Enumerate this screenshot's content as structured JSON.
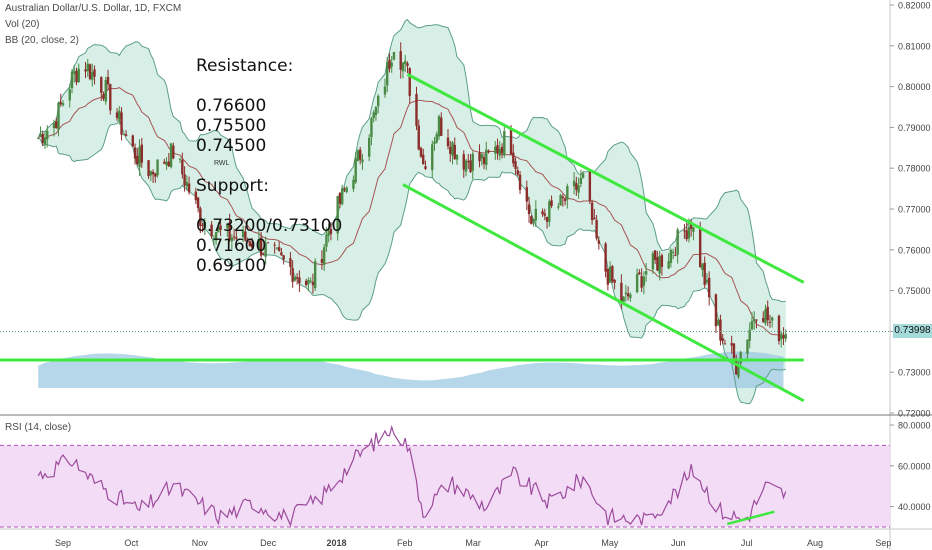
{
  "header": {
    "title": "Australian Dollar/U.S. Dollar, 1D, FXCM",
    "vol": "Vol (20)",
    "bb": "BB (20, close, 2)"
  },
  "rsi_label": "RSI (14, close)",
  "notes": {
    "resistance": "Resistance:\n\n0.76600\n0.75500\n0.74500",
    "tag": "RWL",
    "support": "Support:\n\n0.73200/0.73100\n0.71600\n0.69100"
  },
  "last_price": "0.73998",
  "colors": {
    "up": "#4a8a45",
    "down": "#8b2d2a",
    "band_fill": "#d7efe6",
    "band_line": "#5d9f88",
    "ma": "#a75454",
    "channel": "#3fe83f",
    "vol_area": "#9ecae3",
    "rsi_line": "#9c4b9c",
    "rsi_fill": "#f3dcf5",
    "rsi_band": "#b04eb8"
  },
  "chart_data": [
    {
      "type": "candlestick",
      "title": "Australian Dollar/U.S. Dollar, 1D, FXCM",
      "price_axis": {
        "ylim": [
          0.72,
          0.82
        ],
        "ticks": [
          "0.72000",
          "0.73000",
          "0.74000",
          "0.75000",
          "0.76000",
          "0.77000",
          "0.78000",
          "0.79000",
          "0.80000",
          "0.81000",
          "0.82000"
        ]
      },
      "x_ticks": [
        "Sep",
        "Oct",
        "Nov",
        "Dec",
        "2018",
        "Feb",
        "Mar",
        "Apr",
        "May",
        "Jun",
        "Jul",
        "Aug",
        "Sep"
      ],
      "close_path": [
        [
          "Aug 20 2017",
          0.787
        ],
        [
          "Aug 28 2017",
          0.791
        ],
        [
          "Sep 5 2017",
          0.802
        ],
        [
          "Sep 10 2017",
          0.806
        ],
        [
          "Sep 20 2017",
          0.799
        ],
        [
          "Oct 1 2017",
          0.785
        ],
        [
          "Oct 10 2017",
          0.779
        ],
        [
          "Oct 20 2017",
          0.784
        ],
        [
          "Nov 1 2017",
          0.768
        ],
        [
          "Nov 10 2017",
          0.764
        ],
        [
          "Nov 25 2017",
          0.762
        ],
        [
          "Dec 10 2017",
          0.756
        ],
        [
          "Dec 20 2017",
          0.751
        ],
        [
          "Dec 28 2017",
          0.765
        ],
        [
          "Jan 10 2018",
          0.782
        ],
        [
          "Jan 20 2018",
          0.797
        ],
        [
          "Jan 26 2018",
          0.811
        ],
        [
          "Feb 1 2018",
          0.803
        ],
        [
          "Feb 8 2018",
          0.781
        ],
        [
          "Feb 15 2018",
          0.791
        ],
        [
          "Feb 25 2018",
          0.782
        ],
        [
          "Mar 8 2018",
          0.782
        ],
        [
          "Mar 18 2018",
          0.788
        ],
        [
          "Mar 28 2018",
          0.767
        ],
        [
          "Apr 10 2018",
          0.771
        ],
        [
          "Apr 20 2018",
          0.777
        ],
        [
          "Apr 28 2018",
          0.757
        ],
        [
          "May 8 2018",
          0.747
        ],
        [
          "May 18 2018",
          0.755
        ],
        [
          "May 28 2018",
          0.759
        ],
        [
          "Jun 7 2018",
          0.767
        ],
        [
          "Jun 17 2018",
          0.743
        ],
        [
          "Jun 27 2018",
          0.732
        ],
        [
          "Jul 7 2018",
          0.747
        ],
        [
          "Jul 14 2018",
          0.74
        ],
        [
          "Jul 19 2018",
          0.74
        ]
      ],
      "bollinger": {
        "period": 20,
        "stdev": 2
      },
      "volume": {
        "label": "Vol (20)"
      },
      "trendlines": {
        "channel_upper": [
          [
            "Feb 1 2018",
            0.803
          ],
          [
            "Jul 27 2018",
            0.752
          ]
        ],
        "channel_lower": [
          [
            "Jan 30 2018",
            0.776
          ],
          [
            "Jul 27 2018",
            0.723
          ]
        ],
        "support": [
          [
            "Aug 1 2017",
            0.733
          ],
          [
            "Jul 27 2018",
            0.733
          ]
        ],
        "last_price_line": 0.73998
      },
      "annotations": [
        "Resistance:",
        "0.76600",
        "0.75500",
        "0.74500",
        "RWL",
        "Support:",
        "0.73200/0.73100",
        "0.71600",
        "0.69100"
      ]
    },
    {
      "type": "line",
      "title": "RSI (14, close)",
      "ylim": [
        30,
        80
      ],
      "ticks": [
        "40.0000",
        "60.0000",
        "80.0000"
      ],
      "bands": [
        30,
        70
      ],
      "points": [
        [
          "Aug 20 2017",
          55
        ],
        [
          "Sep 5 2017",
          63
        ],
        [
          "Sep 15 2017",
          52
        ],
        [
          "Oct 5 2017",
          38
        ],
        [
          "Oct 20 2017",
          50
        ],
        [
          "Nov 10 2017",
          35
        ],
        [
          "Nov 25 2017",
          42
        ],
        [
          "Dec 10 2017",
          34
        ],
        [
          "Dec 25 2017",
          45
        ],
        [
          "Jan 10 2018",
          65
        ],
        [
          "Jan 20 2018",
          74
        ],
        [
          "Jan 26 2018",
          79
        ],
        [
          "Feb 1 2018",
          70
        ],
        [
          "Feb 8 2018",
          38
        ],
        [
          "Feb 20 2018",
          52
        ],
        [
          "Mar 8 2018",
          40
        ],
        [
          "Mar 20 2018",
          56
        ],
        [
          "Apr 5 2018",
          42
        ],
        [
          "Apr 20 2018",
          54
        ],
        [
          "May 1 2018",
          35
        ],
        [
          "May 18 2018",
          33
        ],
        [
          "Jun 1 2018",
          48
        ],
        [
          "Jun 8 2018",
          58
        ],
        [
          "Jun 20 2018",
          38
        ],
        [
          "Jul 1 2018",
          33
        ],
        [
          "Jul 10 2018",
          50
        ],
        [
          "Jul 19 2018",
          46
        ]
      ],
      "divergence_line": [
        [
          "Jun 23 2018",
          31.5
        ],
        [
          "Jul 14 2018",
          37.5
        ]
      ]
    }
  ]
}
